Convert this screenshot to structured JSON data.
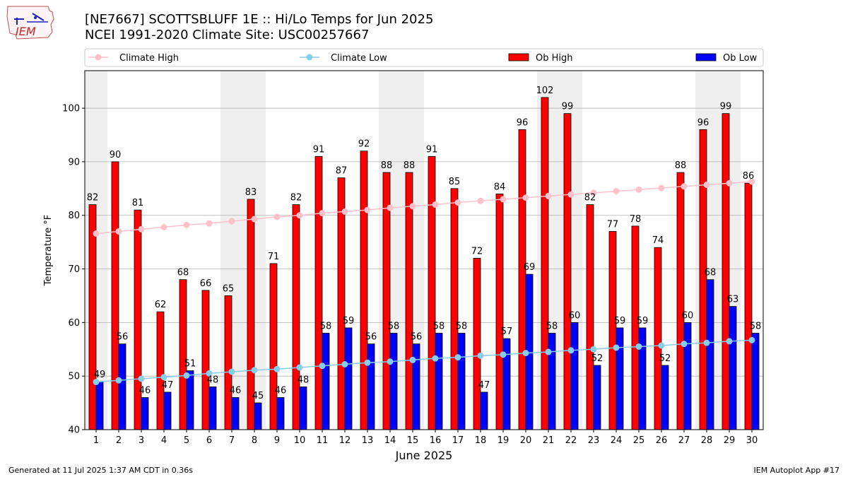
{
  "header": {
    "title_line1": "[NE7667] SCOTTSBLUFF 1E :: Hi/Lo Temps for Jun 2025",
    "title_line2": "NCEI 1991-2020 Climate Site: USC00257667",
    "logo_text": "IEM"
  },
  "footer": {
    "left": "Generated at 11 Jul 2025 1:37 AM CDT in 0.36s",
    "right": "IEM Autoplot App #17"
  },
  "colors": {
    "ob_high": "#ff0000",
    "ob_low": "#0000ff",
    "climate_high": "#ffc0cb",
    "climate_low": "#87ceeb",
    "weekend_band": "#efefef",
    "grid": "#b0b0b0"
  },
  "chart_data": {
    "type": "bar",
    "xlabel": "June 2025",
    "ylabel": "Temperature °F",
    "ylim": [
      40,
      107
    ],
    "yticks": [
      40,
      50,
      60,
      70,
      80,
      90,
      100
    ],
    "grid": "horizontal",
    "legend_position": "top",
    "categories": [
      1,
      2,
      3,
      4,
      5,
      6,
      7,
      8,
      9,
      10,
      11,
      12,
      13,
      14,
      15,
      16,
      17,
      18,
      19,
      20,
      21,
      22,
      23,
      24,
      25,
      26,
      27,
      28,
      29,
      30
    ],
    "shaded_days": [
      1,
      7,
      8,
      14,
      15,
      21,
      22,
      28,
      29
    ],
    "series": [
      {
        "name": "Ob High",
        "kind": "bar",
        "values": [
          82,
          90,
          81,
          62,
          68,
          66,
          65,
          83,
          71,
          82,
          91,
          87,
          92,
          88,
          88,
          91,
          85,
          72,
          84,
          96,
          102,
          99,
          82,
          77,
          78,
          74,
          88,
          96,
          99,
          86
        ]
      },
      {
        "name": "Ob Low",
        "kind": "bar",
        "values": [
          49,
          56,
          46,
          47,
          51,
          48,
          46,
          45,
          46,
          48,
          58,
          59,
          56,
          58,
          56,
          58,
          58,
          47,
          57,
          69,
          58,
          60,
          52,
          59,
          59,
          52,
          60,
          68,
          63,
          58
        ]
      },
      {
        "name": "Climate High",
        "kind": "line",
        "values": [
          76.6,
          77.0,
          77.4,
          77.8,
          78.2,
          78.5,
          78.9,
          79.3,
          79.7,
          80.0,
          80.4,
          80.7,
          81.0,
          81.4,
          81.7,
          82.0,
          82.4,
          82.7,
          83.0,
          83.3,
          83.6,
          83.9,
          84.2,
          84.5,
          84.8,
          85.1,
          85.4,
          85.7,
          86.0,
          86.3
        ]
      },
      {
        "name": "Climate Low",
        "kind": "line",
        "values": [
          48.9,
          49.2,
          49.5,
          49.8,
          50.1,
          50.5,
          50.8,
          51.1,
          51.3,
          51.6,
          51.9,
          52.2,
          52.5,
          52.7,
          53.0,
          53.3,
          53.5,
          53.8,
          54.0,
          54.3,
          54.5,
          54.8,
          55.0,
          55.3,
          55.5,
          55.7,
          56.0,
          56.2,
          56.5,
          56.7
        ]
      }
    ]
  }
}
